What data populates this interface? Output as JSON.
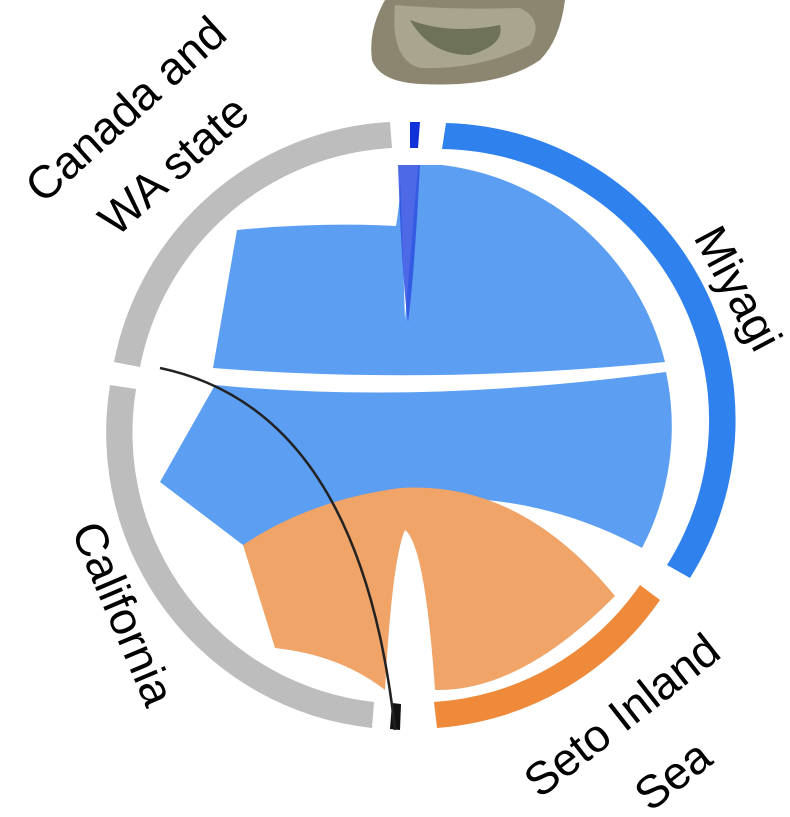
{
  "nodes": [
    {
      "lines": [
        "Canada and",
        "WA state"
      ]
    },
    {
      "lines": [
        "Miyagi"
      ]
    },
    {
      "lines": [
        "California"
      ]
    },
    {
      "lines": [
        "Seto Inland",
        "Sea"
      ]
    }
  ]
}
